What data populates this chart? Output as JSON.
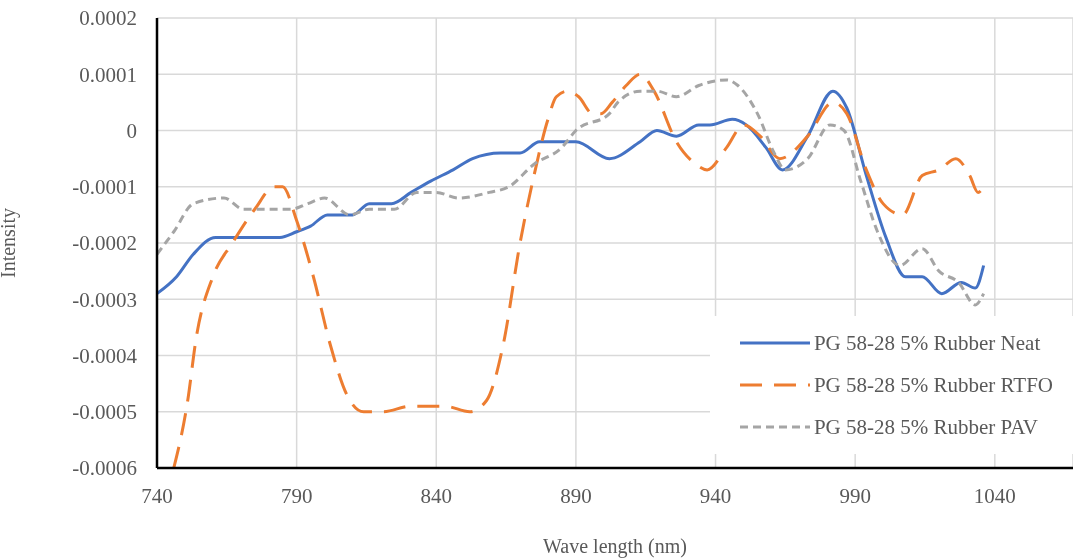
{
  "chart_data": {
    "type": "line",
    "xlabel": "Wave length (nm)",
    "ylabel": "Intensity",
    "xlim": [
      740,
      1068
    ],
    "xticks": [
      740,
      790,
      840,
      890,
      940,
      990,
      1040
    ],
    "ylim": [
      -0.0006,
      0.0002
    ],
    "yticks": [
      -0.0006,
      -0.0005,
      -0.0004,
      -0.0003,
      -0.0002,
      -0.0001,
      0,
      0.0001,
      0.0002
    ],
    "grid": true,
    "legend": "bottom right",
    "marker": "none",
    "series": [
      {
        "name": "PG 58-28 5% Rubber Neat",
        "color": "#4472c4",
        "line_style": "solid",
        "x": [
          740,
          747,
          753,
          761,
          770,
          779,
          784,
          790,
          795,
          801,
          810,
          816,
          824,
          831,
          838,
          846,
          853,
          863,
          870,
          877,
          885,
          890,
          902,
          913,
          919,
          926,
          934,
          938,
          946,
          951,
          958,
          964,
          973,
          982,
          987,
          994,
          1001,
          1008,
          1014,
          1021,
          1028,
          1033,
          1036
        ],
        "values": [
          -0.00029,
          -0.00026,
          -0.00022,
          -0.00019,
          -0.00019,
          -0.00019,
          -0.00019,
          -0.00018,
          -0.00017,
          -0.00015,
          -0.00015,
          -0.00013,
          -0.00013,
          -0.00011,
          -9e-05,
          -7e-05,
          -5e-05,
          -4e-05,
          -4e-05,
          -2e-05,
          -2e-05,
          -2e-05,
          -5e-05,
          -2e-05,
          0,
          -1e-05,
          1e-05,
          1e-05,
          2e-05,
          1e-05,
          -3e-05,
          -7e-05,
          -1e-05,
          7e-05,
          4e-05,
          -8e-05,
          -0.00019,
          -0.00026,
          -0.00026,
          -0.00029,
          -0.00027,
          -0.00028,
          -0.00024
        ]
      },
      {
        "name": "PG 58-28 5% Rubber RTFO",
        "color": "#ed7d31",
        "line_style": "dashed",
        "x": [
          746,
          751,
          754,
          760,
          767,
          775,
          782,
          785,
          790,
          796,
          802,
          808,
          814,
          821,
          831,
          843,
          852,
          858,
          864,
          870,
          875,
          880,
          883,
          887,
          891,
          896,
          899,
          903,
          908,
          913,
          918,
          926,
          933,
          937,
          944,
          950,
          956,
          963,
          973,
          982,
          987,
          994,
          1000,
          1007,
          1014,
          1020,
          1026,
          1031,
          1034,
          1036
        ],
        "values": [
          -0.0006,
          -0.00048,
          -0.00037,
          -0.00026,
          -0.0002,
          -0.00014,
          -0.0001,
          -0.0001,
          -0.00016,
          -0.00026,
          -0.00038,
          -0.00047,
          -0.0005,
          -0.0005,
          -0.00049,
          -0.00049,
          -0.0005,
          -0.00048,
          -0.00038,
          -0.0002,
          -8e-05,
          2e-05,
          6e-05,
          7e-05,
          6e-05,
          3e-05,
          3e-05,
          5e-05,
          8e-05,
          0.0001,
          7e-05,
          -2e-05,
          -6e-05,
          -7e-05,
          -3e-05,
          1e-05,
          -1e-05,
          -5e-05,
          -1e-05,
          5e-05,
          3e-05,
          -7e-05,
          -0.00013,
          -0.00015,
          -8e-05,
          -7e-05,
          -5e-05,
          -8e-05,
          -0.00011,
          -0.0001
        ]
      },
      {
        "name": "PG 58-28 5% Rubber PAV",
        "color": "#a5a5a5",
        "line_style": "dotted",
        "x": [
          740,
          746,
          753,
          764,
          771,
          777,
          788,
          794,
          800,
          809,
          816,
          825,
          833,
          840,
          848,
          859,
          866,
          875,
          885,
          890,
          902,
          905,
          913,
          919,
          926,
          934,
          944,
          948,
          955,
          961,
          965,
          973,
          981,
          986,
          992,
          998,
          1006,
          1014,
          1020,
          1027,
          1033,
          1036
        ],
        "values": [
          -0.00022,
          -0.00018,
          -0.00013,
          -0.00012,
          -0.00014,
          -0.00014,
          -0.00014,
          -0.00013,
          -0.00012,
          -0.00015,
          -0.00014,
          -0.00014,
          -0.00011,
          -0.00011,
          -0.00012,
          -0.00011,
          -0.0001,
          -6e-05,
          -3e-05,
          0,
          3e-05,
          5e-05,
          7e-05,
          7e-05,
          6e-05,
          8e-05,
          9e-05,
          8e-05,
          3e-05,
          -4e-05,
          -7e-05,
          -5e-05,
          1e-05,
          0,
          -9e-05,
          -0.00018,
          -0.00024,
          -0.00021,
          -0.00025,
          -0.00027,
          -0.00031,
          -0.00029
        ]
      }
    ]
  }
}
